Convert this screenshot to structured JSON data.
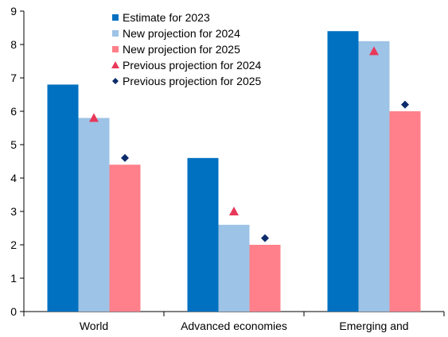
{
  "chart_data": {
    "type": "bar",
    "title": "",
    "xlabel": "",
    "ylabel": "",
    "ylim": [
      0,
      9
    ],
    "yticks": [
      0,
      1,
      2,
      3,
      4,
      5,
      6,
      7,
      8,
      9
    ],
    "grid": false,
    "legend_position": "top-center",
    "categories": [
      "World",
      "Advanced economies",
      "Emerging and"
    ],
    "series": [
      {
        "name": "Estimate for 2023",
        "kind": "bar",
        "color": "#0070C0",
        "marker": "square",
        "values": [
          6.8,
          4.6,
          8.4
        ]
      },
      {
        "name": "New projection for 2024",
        "kind": "bar",
        "color": "#9DC3E6",
        "marker": "square",
        "values": [
          5.8,
          2.6,
          8.1
        ]
      },
      {
        "name": "New projection for 2025",
        "kind": "bar",
        "color": "#FF808A",
        "marker": "square",
        "values": [
          4.4,
          2.0,
          6.0
        ]
      },
      {
        "name": "Previous projection for 2024",
        "kind": "marker",
        "color": "#E8385A",
        "marker": "triangle",
        "values": [
          5.8,
          3.0,
          7.8
        ]
      },
      {
        "name": "Previous projection for 2025",
        "kind": "marker",
        "color": "#0D2C6B",
        "marker": "diamond",
        "values": [
          4.6,
          2.2,
          6.2
        ]
      }
    ]
  }
}
